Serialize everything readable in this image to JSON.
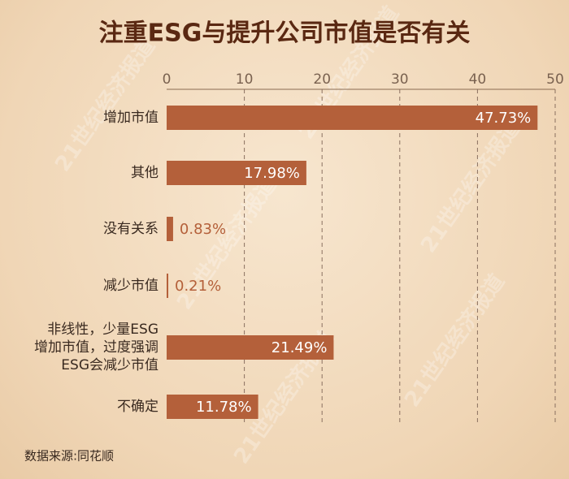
{
  "title": "注重ESG与提升公司市值是否有关",
  "source": "数据来源:同花顺",
  "watermark": "21世纪经济报道",
  "chart_data": {
    "type": "bar",
    "orientation": "horizontal",
    "categories": [
      "增加市值",
      "其他",
      "没有关系",
      "减少市值",
      "非线性，少量ESG\n增加市值，过度强调\nESG会减少市值",
      "不确定"
    ],
    "values": [
      47.73,
      17.98,
      0.83,
      0.21,
      21.49,
      11.78
    ],
    "value_labels": [
      "47.73%",
      "17.98%",
      "0.83%",
      "0.21%",
      "21.49%",
      "11.78%"
    ],
    "color": "#b4603a",
    "xlim": [
      0,
      50
    ],
    "xticks": [
      0,
      10,
      20,
      30,
      40,
      50
    ],
    "grid": true
  }
}
